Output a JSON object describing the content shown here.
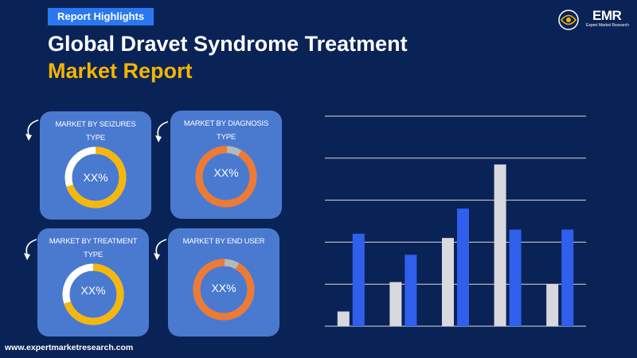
{
  "header": {
    "badge": "Report Highlights",
    "title_line1": "Global Dravet Syndrome Treatment",
    "title_line2": "Market Report"
  },
  "logo": {
    "text": "EMR",
    "tagline": "Expert Market Research"
  },
  "colors": {
    "background": "#0a2357",
    "badge": "#2a78f0",
    "title_accent": "#f4b400",
    "card": "#4a7ad0",
    "donut_yellow": "#f5b80a",
    "donut_orange": "#ee7a33",
    "donut_track_white": "#ffffff",
    "donut_track_grey": "#b8b8b8",
    "bar_grey": "#d8d8de",
    "bar_blue": "#2f5fec",
    "gridline": "#d9d9d9"
  },
  "cards": [
    {
      "label_line1": "MARKET BY SEIZURES",
      "label_line2": "TYPE",
      "value": "XX%",
      "ring": "yellow",
      "fill": 0.7
    },
    {
      "label_line1": "MARKET BY DIAGNOSIS",
      "label_line2": "TYPE",
      "value": "XX%",
      "ring": "orange",
      "fill": 0.92
    },
    {
      "label_line1": "MARKET BY TREATMENT",
      "label_line2": "TYPE",
      "value": "XX%",
      "ring": "yellow",
      "fill": 0.7
    },
    {
      "label_line1": "MARKET BY END USER",
      "label_line2": "",
      "value": "XX%",
      "ring": "orange",
      "fill": 0.92
    }
  ],
  "footer": {
    "url": "www.expertmarketresearch.com"
  },
  "chart_data": {
    "type": "bar",
    "title": "",
    "xlabel": "",
    "ylabel": "",
    "categories": [
      "",
      "",
      "",
      "",
      ""
    ],
    "series": [
      {
        "values": [
          0.7,
          2.1,
          4.2,
          7.7,
          2.0
        ],
        "color": "#d8d8de"
      },
      {
        "values": [
          4.4,
          3.4,
          5.6,
          4.6,
          4.6
        ],
        "color": "#2f5fec"
      }
    ],
    "ylim": [
      0,
      10
    ],
    "grid": true,
    "legend": "none"
  }
}
